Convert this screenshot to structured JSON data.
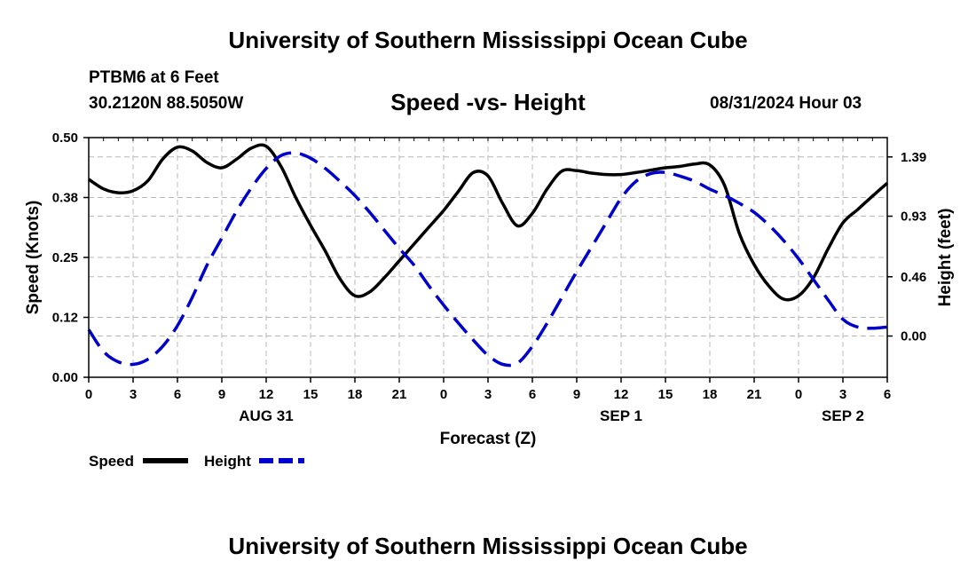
{
  "header": {
    "title": "University of Southern Mississippi Ocean Cube",
    "station": "PTBM6 at 6 Feet",
    "coords": "30.2120N  88.5050W",
    "date": "08/31/2024 Hour 03"
  },
  "footer": {
    "title": "University of Southern Mississippi Ocean Cube"
  },
  "chart_data": {
    "type": "line",
    "title": "Speed -vs- Height",
    "xlabel": "Forecast (Z)",
    "ylabel": "Speed (Knots)",
    "y2label": "Height (feet)",
    "xlim": [
      0,
      54
    ],
    "ylim": [
      0,
      0.5
    ],
    "y2lim": [
      -0.32,
      1.54
    ],
    "xticks": [
      0,
      3,
      6,
      9,
      12,
      15,
      18,
      21,
      24,
      27,
      30,
      33,
      36,
      39,
      42,
      45,
      48,
      51,
      54
    ],
    "xticklabels": [
      "0",
      "3",
      "6",
      "9",
      "12",
      "15",
      "18",
      "21",
      "0",
      "3",
      "6",
      "9",
      "12",
      "15",
      "18",
      "21",
      "0",
      "3",
      "6"
    ],
    "date_labels": [
      {
        "hour": 12,
        "label": "AUG 31"
      },
      {
        "hour": 36,
        "label": "SEP 1"
      },
      {
        "hour": 51,
        "label": "SEP 2"
      }
    ],
    "yticks": [
      0.0,
      0.125,
      0.25,
      0.375,
      0.5
    ],
    "yticklabels": [
      "0.00",
      "0.12",
      "0.25",
      "0.38",
      "0.50"
    ],
    "y2ticks": [
      0.0,
      0.46,
      0.93,
      1.39
    ],
    "y2ticklabels": [
      "0.00",
      "0.46",
      "0.93",
      "1.39"
    ],
    "grid": true,
    "series": [
      {
        "name": "Speed",
        "axis": "left",
        "color": "#000000",
        "style": "solid",
        "x": [
          0,
          1,
          2,
          3,
          4,
          5,
          6,
          7,
          8,
          9,
          10,
          11,
          12,
          13,
          14,
          15,
          16,
          17,
          18,
          19,
          20,
          21,
          22,
          23,
          24,
          25,
          26,
          27,
          28,
          29,
          30,
          31,
          32,
          33,
          34,
          35,
          36,
          37,
          38,
          39,
          40,
          41,
          42,
          43,
          44,
          45,
          46,
          47,
          48,
          49,
          50,
          51,
          52,
          53,
          54
        ],
        "values": [
          0.413,
          0.393,
          0.385,
          0.389,
          0.41,
          0.455,
          0.48,
          0.472,
          0.448,
          0.437,
          0.455,
          0.478,
          0.482,
          0.44,
          0.375,
          0.317,
          0.263,
          0.205,
          0.17,
          0.178,
          0.208,
          0.243,
          0.278,
          0.313,
          0.348,
          0.388,
          0.427,
          0.42,
          0.362,
          0.316,
          0.342,
          0.393,
          0.43,
          0.431,
          0.426,
          0.423,
          0.423,
          0.427,
          0.432,
          0.437,
          0.44,
          0.445,
          0.443,
          0.4,
          0.3,
          0.235,
          0.19,
          0.163,
          0.17,
          0.207,
          0.268,
          0.322,
          0.35,
          0.378,
          0.405
        ]
      },
      {
        "name": "Height",
        "axis": "right",
        "color": "#0000cc",
        "style": "dashed",
        "x": [
          0,
          1,
          2,
          3,
          4,
          5,
          6,
          7,
          8,
          9,
          10,
          11,
          12,
          13,
          14,
          15,
          16,
          17,
          18,
          19,
          20,
          21,
          22,
          23,
          24,
          25,
          26,
          27,
          28,
          29,
          30,
          31,
          32,
          33,
          34,
          35,
          36,
          37,
          38,
          39,
          40,
          41,
          42,
          43,
          44,
          45,
          46,
          47,
          48,
          49,
          50,
          51,
          52,
          53,
          54
        ],
        "values": [
          0.05,
          -0.12,
          -0.2,
          -0.22,
          -0.18,
          -0.08,
          0.08,
          0.3,
          0.55,
          0.76,
          0.97,
          1.15,
          1.3,
          1.4,
          1.42,
          1.38,
          1.3,
          1.2,
          1.09,
          0.96,
          0.82,
          0.68,
          0.55,
          0.39,
          0.24,
          0.1,
          -0.03,
          -0.15,
          -0.22,
          -0.21,
          -0.08,
          0.1,
          0.3,
          0.5,
          0.69,
          0.88,
          1.07,
          1.2,
          1.26,
          1.27,
          1.24,
          1.2,
          1.14,
          1.09,
          1.03,
          0.96,
          0.86,
          0.74,
          0.6,
          0.44,
          0.28,
          0.13,
          0.07,
          0.06,
          0.07
        ]
      }
    ],
    "legend": {
      "placement": "bottom-left",
      "entries": [
        {
          "label": "Speed",
          "color": "#000000"
        },
        {
          "label": "Height",
          "color": "#0000cc"
        }
      ]
    }
  }
}
